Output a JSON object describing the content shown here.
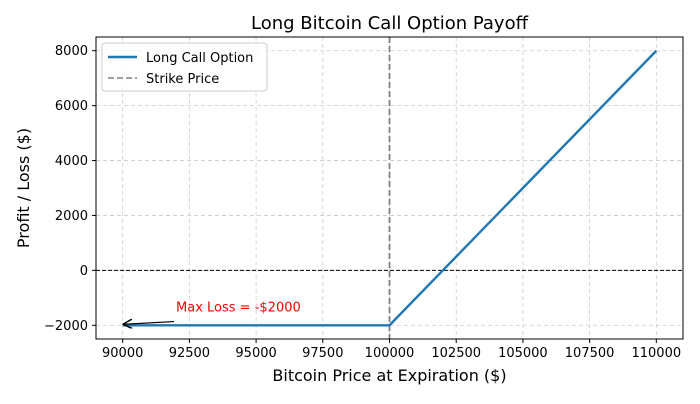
{
  "chart_data": {
    "type": "line",
    "title": "Long Bitcoin Call Option Payoff",
    "xlabel": "Bitcoin Price at Expiration ($)",
    "ylabel": "Profit / Loss ($)",
    "xlim": [
      89000,
      111000
    ],
    "ylim": [
      -2500,
      8500
    ],
    "xticks": [
      90000,
      92500,
      95000,
      97500,
      100000,
      102500,
      105000,
      107500,
      110000
    ],
    "xtick_labels": [
      "90000",
      "92500",
      "95000",
      "97500",
      "100000",
      "102500",
      "105000",
      "107500",
      "110000"
    ],
    "yticks": [
      -2000,
      0,
      2000,
      4000,
      6000,
      8000
    ],
    "ytick_labels": [
      "−2000",
      "0",
      "2000",
      "4000",
      "6000",
      "8000"
    ],
    "grid": true,
    "legend_position": "top-left",
    "series": [
      {
        "name": "Long Call Option",
        "color": "#1f77b4",
        "style": "solid",
        "x": [
          90000,
          100000,
          110000
        ],
        "y": [
          -2000,
          -2000,
          8000
        ]
      }
    ],
    "reference_lines": [
      {
        "name": "Strike Price",
        "orientation": "vertical",
        "value": 100000,
        "color": "#808080",
        "style": "dashed"
      },
      {
        "orientation": "horizontal",
        "value": 0,
        "color": "#000000",
        "style": "dashed"
      }
    ],
    "annotations": [
      {
        "text": "Max Loss = -$2000",
        "color": "#ff0000",
        "point": [
          90000,
          -2000
        ],
        "text_at": [
          92000,
          -1500
        ]
      }
    ]
  }
}
